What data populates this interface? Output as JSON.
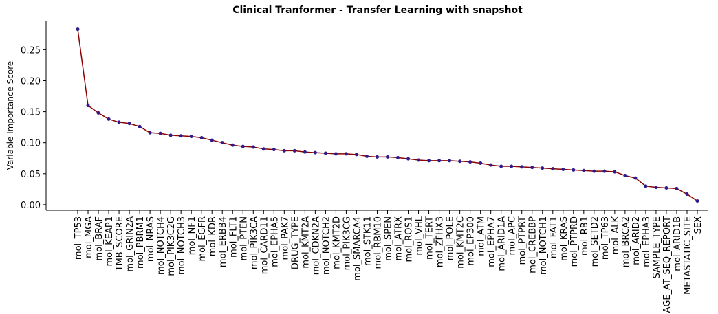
{
  "chart_data": {
    "type": "line",
    "title": "Clinical Tranformer - Transfer Learning with snapshot",
    "y_label": "Variable Importance Score",
    "categories": [
      "mol_TP53",
      "mol_MGA",
      "mol_BRAF",
      "mol_KEAP1",
      "TMB_SCORE",
      "mol_GRIN2A",
      "mol_PBRM1",
      "mol_NRAS",
      "mol_NOTCH4",
      "mol_PIK3C2G",
      "mol_NOTCH3",
      "mol_NF1",
      "mol_EGFR",
      "mol_KDR",
      "mol_ERBB4",
      "mol_FLT1",
      "mol_PTEN",
      "mol_PIK3CA",
      "mol_CARD11",
      "mol_EPHA5",
      "mol_PAK7",
      "DRUG_TYPE",
      "mol_KMT2A",
      "mol_CDKN2A",
      "mol_NOTCH2",
      "mol_KMT2D",
      "mol_PIK3CG",
      "mol_SMARCA4",
      "mol_STK11",
      "mol_RBM10",
      "mol_SPEN",
      "mol_ATRX",
      "mol_ROS1",
      "mol_VHL",
      "mol_TERT",
      "mol_ZFHX3",
      "mol_POLE",
      "mol_KMT2C",
      "mol_EP300",
      "mol_ATM",
      "mol_EPHA7",
      "mol_ARID1A",
      "mol_APC",
      "mol_PTPRT",
      "mol_CREBBP",
      "mol_NOTCH1",
      "mol_FAT1",
      "mol_KRAS",
      "mol_PTPRD",
      "mol_RB1",
      "mol_SETD2",
      "mol_TP63",
      "mol_ALK",
      "mol_BRCA2",
      "mol_ARID2",
      "mol_EPHA3",
      "SAMPLE_TYPE",
      "AGE_AT_SEQ_REPORT",
      "mol_ARID1B",
      "METASTATIC_SITE",
      "SEX"
    ],
    "values": [
      0.283,
      0.16,
      0.148,
      0.138,
      0.133,
      0.131,
      0.126,
      0.116,
      0.115,
      0.112,
      0.111,
      0.11,
      0.108,
      0.104,
      0.1,
      0.096,
      0.094,
      0.093,
      0.09,
      0.089,
      0.087,
      0.087,
      0.085,
      0.084,
      0.083,
      0.082,
      0.082,
      0.081,
      0.078,
      0.077,
      0.077,
      0.076,
      0.074,
      0.072,
      0.071,
      0.071,
      0.071,
      0.07,
      0.069,
      0.067,
      0.064,
      0.062,
      0.062,
      0.061,
      0.06,
      0.059,
      0.058,
      0.057,
      0.056,
      0.055,
      0.054,
      0.054,
      0.053,
      0.047,
      0.043,
      0.03,
      0.028,
      0.027,
      0.026,
      0.017,
      0.006
    ],
    "color": "#8b0000",
    "marker_color": "#2e1a8a",
    "ylim": [
      -0.009,
      0.297
    ],
    "yticks": [
      {
        "value": 0,
        "label": "0.00"
      },
      0.05,
      {
        "value": 0.1,
        "label": "0.10"
      },
      0.15,
      {
        "value": 0.2,
        "label": "0.20"
      },
      0.25
    ]
  }
}
